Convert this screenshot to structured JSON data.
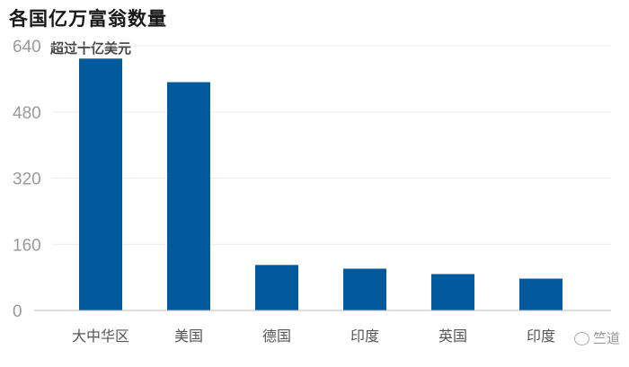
{
  "chart_data": {
    "type": "bar",
    "title": "各国亿万富翁数量",
    "subtitle": "超过十亿美元",
    "categories": [
      "大中华区",
      "美国",
      "德国",
      "印度",
      "英国",
      "印度"
    ],
    "values": [
      609,
      552,
      110,
      101,
      88,
      77
    ],
    "yticks": [
      0,
      160,
      320,
      480,
      640
    ],
    "ylim": [
      0,
      640
    ],
    "bar_color": "#005a9c",
    "grid": true
  },
  "watermark": "竺道"
}
